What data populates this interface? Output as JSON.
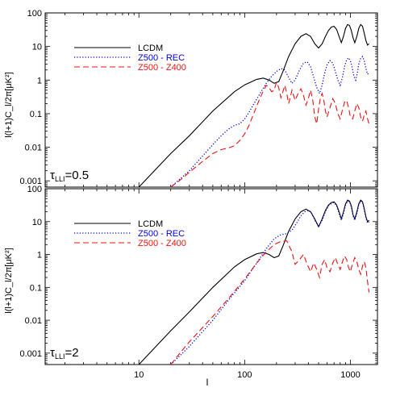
{
  "chart_data": [
    {
      "type": "line",
      "panel": "top",
      "xscale": "log",
      "yscale": "log",
      "xlim": [
        1.3,
        1800
      ],
      "ylim": [
        0.00065,
        100
      ],
      "ylabel": "l(l+1)C_l/2π[μK²]",
      "annotation": {
        "symbol": "τ",
        "subscript": "LLI",
        "value": "=0.5"
      },
      "legend_position": "top-left",
      "yticks": [
        {
          "v": 100,
          "label": "100"
        },
        {
          "v": 10,
          "label": "10"
        },
        {
          "v": 1,
          "label": "1"
        },
        {
          "v": 0.1,
          "label": "0.1"
        },
        {
          "v": 0.01,
          "label": "0.01"
        },
        {
          "v": 0.001,
          "label": "0.001"
        }
      ],
      "series": [
        {
          "name": "LCDM",
          "color": "#000000",
          "dash": "solid",
          "x": [
            10,
            15,
            20,
            30,
            50,
            80,
            100,
            130,
            150,
            170,
            190,
            210,
            230,
            260,
            300,
            340,
            380,
            420,
            460,
            500,
            540,
            580,
            620,
            660,
            700,
            740,
            780,
            820,
            860,
            900,
            940,
            980,
            1020,
            1060,
            1100,
            1150,
            1200,
            1250,
            1300,
            1350,
            1400,
            1450,
            1500
          ],
          "y": [
            0.00065,
            0.0025,
            0.0065,
            0.022,
            0.12,
            0.45,
            0.72,
            1.05,
            1.15,
            1.0,
            0.8,
            0.9,
            1.8,
            5.0,
            12.0,
            20.0,
            24.0,
            20.0,
            12.0,
            9.0,
            12.0,
            20.0,
            30.0,
            38.0,
            40.0,
            32.0,
            20.0,
            13.0,
            20.0,
            35.0,
            45.0,
            42.0,
            30.0,
            18.0,
            13.0,
            20.0,
            35.0,
            45.0,
            40.0,
            25.0,
            15.0,
            11.0,
            12.0
          ]
        },
        {
          "name": "Z500 - REC",
          "color": "#0000dd",
          "dash": "dotted",
          "x": [
            20,
            25,
            30,
            40,
            50,
            60,
            70,
            80,
            90,
            100,
            110,
            120,
            140,
            160,
            180,
            200,
            220,
            240,
            260,
            280,
            300,
            330,
            360,
            390,
            420,
            450,
            480,
            510,
            540,
            570,
            600,
            640,
            680,
            720,
            760,
            800,
            840,
            880,
            920,
            960,
            1000,
            1040,
            1080,
            1120,
            1160,
            1200,
            1250,
            1300,
            1350,
            1400,
            1450,
            1500
          ],
          "y": [
            0.00065,
            0.0012,
            0.002,
            0.0055,
            0.012,
            0.022,
            0.034,
            0.045,
            0.05,
            0.07,
            0.11,
            0.18,
            0.4,
            0.8,
            1.3,
            1.8,
            2.2,
            2.0,
            1.2,
            0.8,
            1.0,
            2.0,
            3.2,
            3.5,
            2.5,
            1.2,
            0.6,
            0.4,
            0.7,
            1.6,
            2.8,
            3.8,
            3.2,
            1.8,
            1.0,
            0.7,
            1.2,
            2.5,
            4.0,
            4.6,
            3.8,
            2.3,
            1.3,
            1.0,
            1.6,
            3.0,
            4.5,
            5.0,
            3.8,
            2.2,
            1.5,
            1.7
          ]
        },
        {
          "name": "Z500 - Z400",
          "color": "#ee1111",
          "dash": "dashed",
          "x": [
            20,
            25,
            30,
            40,
            50,
            60,
            70,
            80,
            90,
            100,
            110,
            120,
            140,
            160,
            170,
            180,
            190,
            200,
            210,
            220,
            230,
            240,
            250,
            260,
            270,
            280,
            290,
            300,
            320,
            340,
            360,
            380,
            400,
            420,
            440,
            460,
            480,
            500,
            520,
            540,
            560,
            580,
            600,
            640,
            680,
            720,
            760,
            800,
            840,
            880,
            920,
            960,
            1000,
            1050,
            1100,
            1150,
            1200,
            1250,
            1300,
            1350,
            1400,
            1450,
            1500
          ],
          "y": [
            0.00065,
            0.0011,
            0.0018,
            0.0038,
            0.0065,
            0.0085,
            0.0095,
            0.011,
            0.016,
            0.025,
            0.045,
            0.09,
            0.3,
            0.7,
            0.6,
            0.45,
            0.5,
            0.85,
            0.6,
            0.3,
            0.45,
            0.7,
            0.4,
            0.2,
            0.3,
            0.5,
            0.35,
            0.25,
            0.4,
            0.55,
            0.35,
            0.18,
            0.28,
            0.5,
            0.25,
            0.08,
            0.05,
            0.14,
            0.3,
            0.4,
            0.25,
            0.12,
            0.08,
            0.15,
            0.28,
            0.2,
            0.1,
            0.07,
            0.13,
            0.22,
            0.25,
            0.15,
            0.08,
            0.07,
            0.12,
            0.2,
            0.15,
            0.08,
            0.06,
            0.09,
            0.12,
            0.07,
            0.05
          ]
        }
      ]
    },
    {
      "type": "line",
      "panel": "bottom",
      "xscale": "log",
      "yscale": "log",
      "xlim": [
        1.3,
        1800
      ],
      "ylim": [
        0.00045,
        100
      ],
      "xlabel": "l",
      "ylabel": "l(l+1)C_l/2π[μK²]",
      "annotation": {
        "symbol": "τ",
        "subscript": "LLI",
        "value": "=2"
      },
      "legend_position": "top-left",
      "xticks": [
        {
          "v": 10,
          "label": "10"
        },
        {
          "v": 100,
          "label": "100"
        },
        {
          "v": 1000,
          "label": "1000"
        }
      ],
      "yticks": [
        {
          "v": 100,
          "label": "100"
        },
        {
          "v": 10,
          "label": "10"
        },
        {
          "v": 1,
          "label": "1"
        },
        {
          "v": 0.1,
          "label": "0.1"
        },
        {
          "v": 0.01,
          "label": "0.01"
        },
        {
          "v": 0.001,
          "label": "0.001"
        }
      ],
      "series": [
        {
          "name": "LCDM",
          "color": "#000000",
          "dash": "solid",
          "x": [
            10,
            15,
            20,
            30,
            50,
            80,
            100,
            130,
            150,
            170,
            190,
            210,
            230,
            260,
            300,
            340,
            380,
            420,
            460,
            500,
            540,
            580,
            620,
            660,
            700,
            740,
            780,
            820,
            860,
            900,
            940,
            980,
            1020,
            1060,
            1100,
            1150,
            1200,
            1250,
            1300,
            1350,
            1400,
            1450,
            1500
          ],
          "y": [
            0.00045,
            0.0018,
            0.0048,
            0.018,
            0.1,
            0.42,
            0.7,
            1.05,
            1.15,
            1.0,
            0.8,
            0.9,
            1.8,
            5.0,
            12.0,
            20.0,
            24.0,
            20.0,
            12.0,
            7.0,
            12.0,
            22.0,
            32.0,
            38.0,
            40.0,
            32.0,
            20.0,
            12.0,
            20.0,
            35.0,
            45.0,
            42.0,
            30.0,
            16.0,
            12.0,
            20.0,
            35.0,
            45.0,
            40.0,
            25.0,
            14.0,
            10.0,
            11.0
          ]
        },
        {
          "name": "Z500 - REC",
          "color": "#0000dd",
          "dash": "dotted",
          "x": [
            20,
            25,
            30,
            40,
            50,
            70,
            100,
            130,
            160,
            190,
            220,
            250,
            280,
            310,
            340,
            370,
            400,
            430,
            460,
            500,
            540,
            580,
            620,
            660,
            700,
            740,
            780,
            820,
            860,
            900,
            940,
            980,
            1020,
            1060,
            1100,
            1150,
            1200,
            1250,
            1300,
            1350,
            1400,
            1450,
            1500
          ],
          "y": [
            0.00045,
            0.0009,
            0.0016,
            0.0045,
            0.01,
            0.04,
            0.16,
            0.55,
            1.5,
            3.0,
            4.0,
            4.3,
            5.5,
            9.0,
            15.0,
            20.0,
            22.0,
            18.0,
            11.0,
            7.0,
            11.0,
            20.0,
            30.0,
            36.0,
            38.0,
            30.0,
            18.0,
            11.0,
            18.0,
            32.0,
            42.0,
            40.0,
            28.0,
            15.0,
            11.0,
            18.0,
            33.0,
            42.0,
            38.0,
            23.0,
            13.0,
            9.0,
            10.0
          ]
        },
        {
          "name": "Z500 - Z400",
          "color": "#ee1111",
          "dash": "dashed",
          "x": [
            20,
            25,
            30,
            40,
            50,
            70,
            100,
            130,
            160,
            190,
            220,
            250,
            280,
            300,
            330,
            360,
            390,
            420,
            450,
            480,
            510,
            540,
            570,
            600,
            640,
            680,
            720,
            760,
            800,
            840,
            880,
            920,
            960,
            1000,
            1050,
            1100,
            1150,
            1200,
            1250,
            1300,
            1350,
            1400,
            1450,
            1500
          ],
          "y": [
            0.00045,
            0.0011,
            0.0022,
            0.006,
            0.013,
            0.045,
            0.18,
            0.55,
            1.2,
            2.0,
            2.5,
            2.6,
            1.2,
            0.5,
            0.7,
            1.0,
            0.5,
            0.3,
            0.55,
            0.35,
            0.2,
            0.5,
            0.7,
            0.4,
            0.3,
            0.55,
            0.8,
            0.5,
            0.35,
            0.6,
            0.9,
            0.7,
            0.4,
            0.3,
            0.55,
            0.8,
            0.6,
            0.35,
            0.25,
            0.45,
            0.6,
            0.4,
            0.15,
            0.07
          ]
        }
      ]
    }
  ]
}
